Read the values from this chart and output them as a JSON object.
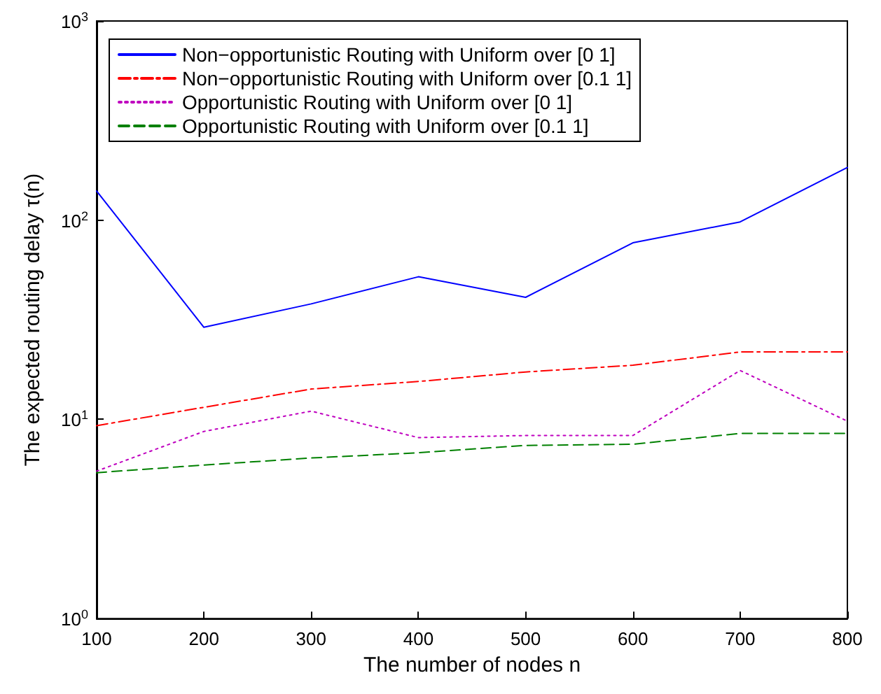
{
  "chart_data": {
    "type": "line",
    "xlabel": "The number of nodes n",
    "ylabel": "The expected routing delay τ(n)",
    "x": [
      100,
      200,
      300,
      400,
      500,
      600,
      700,
      800
    ],
    "xlim": [
      100,
      800
    ],
    "xticks": [
      100,
      200,
      300,
      400,
      500,
      600,
      700,
      800
    ],
    "ylim": [
      1,
      1000
    ],
    "yticks": [
      {
        "value": 1,
        "label": "10$^{0}$"
      },
      {
        "value": 10,
        "label": "10$^{1}$"
      },
      {
        "value": 100,
        "label": "10$^{2}$"
      },
      {
        "value": 1000,
        "label": "10$^{3}$"
      }
    ],
    "log": "y",
    "grid": false,
    "legend": "top left",
    "marker": "none",
    "series": [
      {
        "name": "Non−opportunistic Routing with Uniform over [0 1]",
        "color": "#0000ff",
        "line_style": "solid",
        "values": [
          140,
          29,
          38,
          52,
          41,
          77,
          98,
          184
        ]
      },
      {
        "name": "Non−opportunistic Routing with Uniform over [0.1 1]",
        "color": "#ff0000",
        "line_style": "dashdot",
        "values": [
          9.3,
          11.5,
          14.2,
          15.5,
          17.3,
          18.7,
          21.8,
          21.8
        ]
      },
      {
        "name": "Opportunistic Routing with Uniform over [0 1]",
        "color": "#bf00bf",
        "line_style": "dotted",
        "values": [
          5.5,
          8.7,
          11,
          8.1,
          8.3,
          8.3,
          17.6,
          9.8
        ]
      },
      {
        "name": "Opportunistic Routing with Uniform over [0.1 1]",
        "color": "#008000",
        "line_style": "dashed",
        "values": [
          5.4,
          5.9,
          6.4,
          6.8,
          7.4,
          7.5,
          8.5,
          8.5
        ]
      }
    ]
  }
}
